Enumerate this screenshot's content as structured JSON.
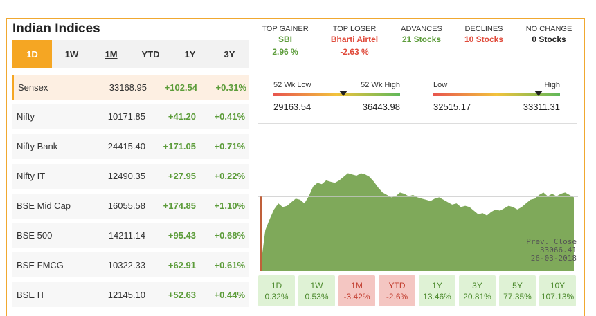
{
  "title": "Indian Indices",
  "tabs": [
    "1D",
    "1W",
    "1M",
    "YTD",
    "1Y",
    "3Y"
  ],
  "indices": [
    {
      "name": "Sensex",
      "price": "33168.95",
      "change": "+102.54",
      "pct": "+0.31%"
    },
    {
      "name": "Nifty",
      "price": "10171.85",
      "change": "+41.20",
      "pct": "+0.41%"
    },
    {
      "name": "Nifty Bank",
      "price": "24415.40",
      "change": "+171.05",
      "pct": "+0.71%"
    },
    {
      "name": "Nifty IT",
      "price": "12490.35",
      "change": "+27.95",
      "pct": "+0.22%"
    },
    {
      "name": "BSE Mid Cap",
      "price": "16055.58",
      "change": "+174.85",
      "pct": "+1.10%"
    },
    {
      "name": "BSE 500",
      "price": "14211.14",
      "change": "+95.43",
      "pct": "+0.68%"
    },
    {
      "name": "BSE FMCG",
      "price": "10322.33",
      "change": "+62.91",
      "pct": "+0.61%"
    },
    {
      "name": "BSE IT",
      "price": "12145.10",
      "change": "+52.63",
      "pct": "+0.44%"
    }
  ],
  "stats": {
    "top_gainer": {
      "label": "TOP GAINER",
      "name": "SBI",
      "value": "2.96 %"
    },
    "top_loser": {
      "label": "TOP LOSER",
      "name": "Bharti Airtel",
      "value": "-2.63 %"
    },
    "advances": {
      "label": "ADVANCES",
      "value": "21 Stocks"
    },
    "declines": {
      "label": "DECLINES",
      "value": "10 Stocks"
    },
    "no_change": {
      "label": "NO CHANGE",
      "value": "0 Stocks"
    }
  },
  "week52": {
    "low_label": "52 Wk Low",
    "high_label": "52 Wk High",
    "low": "29163.54",
    "high": "36443.98",
    "marker_position": 0.55
  },
  "day_range": {
    "low_label": "Low",
    "high_label": "High",
    "low": "32515.17",
    "high": "33311.31",
    "marker_position": 0.83
  },
  "prev_close": {
    "label": "Prev. Close",
    "value": "33066.41",
    "date": "26-03-2018"
  },
  "periods": [
    {
      "label": "1D",
      "value": "0.32%",
      "dir": "up"
    },
    {
      "label": "1W",
      "value": "0.53%",
      "dir": "up"
    },
    {
      "label": "1M",
      "value": "-3.42%",
      "dir": "down"
    },
    {
      "label": "YTD",
      "value": "-2.6%",
      "dir": "down"
    },
    {
      "label": "1Y",
      "value": "13.46%",
      "dir": "up"
    },
    {
      "label": "3Y",
      "value": "20.81%",
      "dir": "up"
    },
    {
      "label": "5Y",
      "value": "77.35%",
      "dir": "up"
    },
    {
      "label": "10Y",
      "value": "107.13%",
      "dir": "up"
    }
  ],
  "colors": {
    "accent": "#f5a623",
    "positive": "#5c9c3a",
    "negative": "#e04a3a",
    "area": "#7fa95a"
  },
  "chart_data": {
    "type": "area",
    "ylabel": "",
    "xlabel": "",
    "ylim": [
      32450,
      33400
    ],
    "reference_line": 33066.41,
    "values": [
      32510,
      32790,
      32880,
      32960,
      33010,
      32980,
      32990,
      33020,
      33050,
      33040,
      33010,
      33070,
      33150,
      33180,
      33170,
      33200,
      33190,
      33180,
      33200,
      33230,
      33260,
      33250,
      33240,
      33260,
      33250,
      33230,
      33190,
      33140,
      33100,
      33080,
      33060,
      33070,
      33100,
      33090,
      33070,
      33080,
      33060,
      33050,
      33040,
      33030,
      33050,
      33060,
      33040,
      33020,
      33000,
      33010,
      32980,
      32990,
      32980,
      32950,
      32920,
      32930,
      32910,
      32940,
      32960,
      32950,
      32970,
      32990,
      32980,
      32960,
      32980,
      33010,
      33040,
      33050,
      33080,
      33100,
      33070,
      33090,
      33070,
      33090,
      33100,
      33080,
      33060
    ]
  }
}
